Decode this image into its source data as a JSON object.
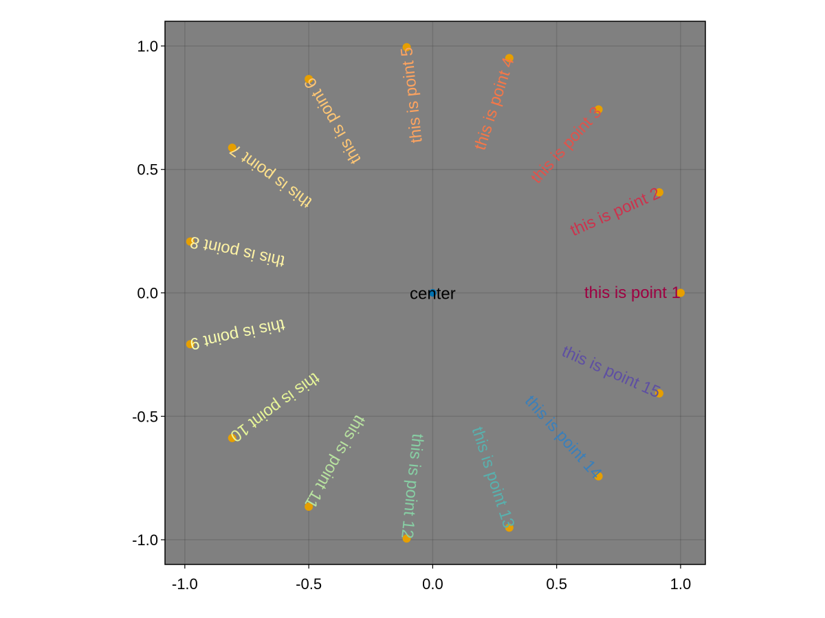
{
  "chart_data": {
    "type": "scatter",
    "title": "",
    "xlabel": "",
    "ylabel": "",
    "xlim": [
      -1.08,
      1.1
    ],
    "ylim": [
      -1.1,
      1.1
    ],
    "grid": true,
    "background_color": "#808080",
    "point_color": "#e69f00",
    "center_color": "#0072b2",
    "x_ticks": [
      {
        "value": -1.0,
        "label": "-1.0"
      },
      {
        "value": -0.5,
        "label": "-0.5"
      },
      {
        "value": 0.0,
        "label": "0.0"
      },
      {
        "value": 0.5,
        "label": "0.5"
      },
      {
        "value": 1.0,
        "label": "1.0"
      }
    ],
    "y_ticks": [
      {
        "value": -1.0,
        "label": "-1.0"
      },
      {
        "value": -0.5,
        "label": "-0.5"
      },
      {
        "value": 0.0,
        "label": "0.0"
      },
      {
        "value": 0.5,
        "label": "0.5"
      },
      {
        "value": 1.0,
        "label": "1.0"
      }
    ],
    "center": {
      "x": 0.0,
      "y": 0.0,
      "label": "center"
    },
    "points": [
      {
        "x": 1.0,
        "y": 0.0,
        "label": "this is point 1",
        "color": "#9e0142"
      },
      {
        "x": 0.914,
        "y": 0.407,
        "label": "this is point 2",
        "color": "#cb334d"
      },
      {
        "x": 0.669,
        "y": 0.743,
        "label": "this is point 3",
        "color": "#e1524a"
      },
      {
        "x": 0.309,
        "y": 0.951,
        "label": "this is point 4",
        "color": "#f57748"
      },
      {
        "x": -0.105,
        "y": 0.995,
        "label": "this is point 5",
        "color": "#fca360"
      },
      {
        "x": -0.5,
        "y": 0.866,
        "label": "this is point 6",
        "color": "#fdc574"
      },
      {
        "x": -0.809,
        "y": 0.588,
        "label": "this is point 7",
        "color": "#fee08b"
      },
      {
        "x": -0.978,
        "y": 0.208,
        "label": "this is point 8",
        "color": "#fff3a5"
      },
      {
        "x": -0.978,
        "y": -0.208,
        "label": "this is point 9",
        "color": "#f8fbae"
      },
      {
        "x": -0.809,
        "y": -0.588,
        "label": "this is point 10",
        "color": "#e6f598"
      },
      {
        "x": -0.5,
        "y": -0.866,
        "label": "this is point 11",
        "color": "#b8e2a0"
      },
      {
        "x": -0.105,
        "y": -0.995,
        "label": "this is point 12",
        "color": "#87cfa4"
      },
      {
        "x": 0.309,
        "y": -0.951,
        "label": "this is point 13",
        "color": "#58b1ae"
      },
      {
        "x": 0.669,
        "y": -0.743,
        "label": "this is point 14",
        "color": "#3a7fba"
      },
      {
        "x": 0.914,
        "y": -0.407,
        "label": "this is point 15",
        "color": "#5e4fa2"
      }
    ]
  }
}
